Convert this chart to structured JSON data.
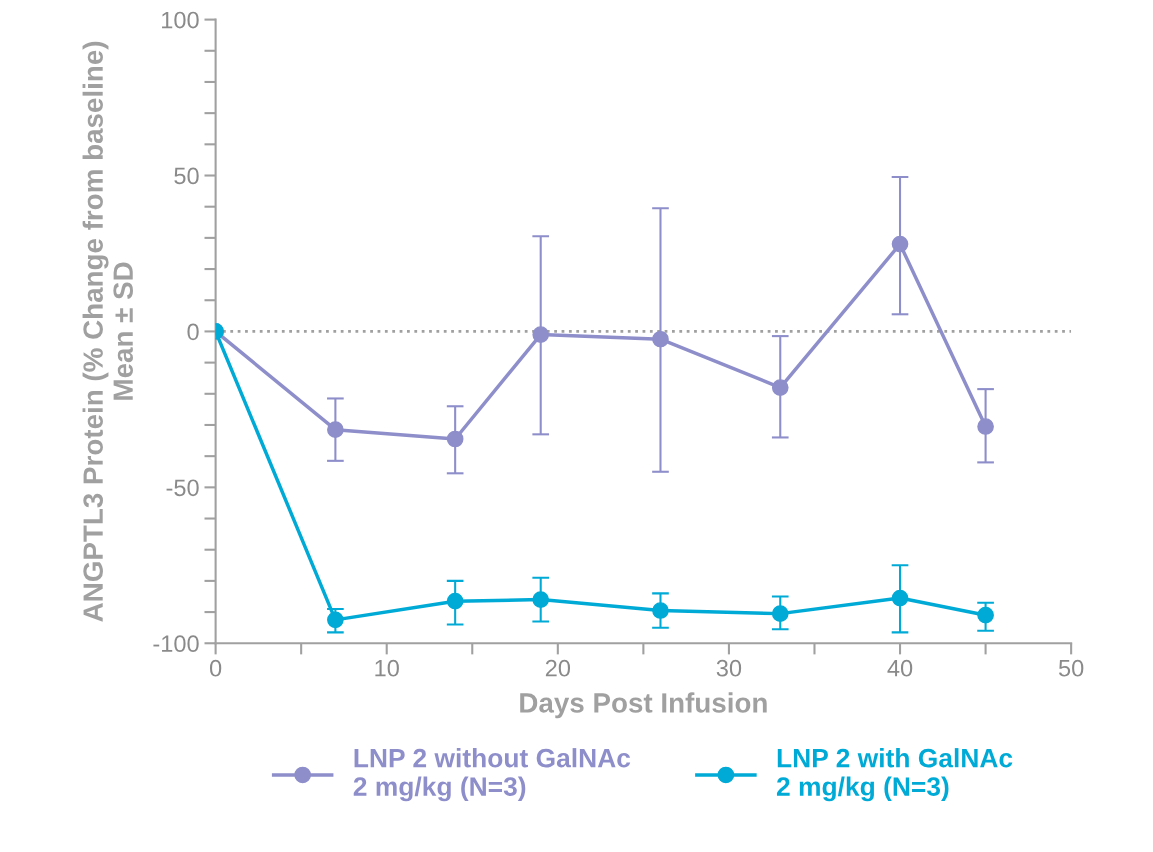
{
  "chart_data": {
    "type": "line",
    "xlabel": "Days Post Infusion",
    "ylabel": "ANGPTL3 Protein (% Change from baseline)\nMean ± SD",
    "xlim": [
      0,
      50
    ],
    "xticks": [
      0,
      {
        "value": 5,
        "label": null
      },
      10,
      {
        "value": 15,
        "label": null
      },
      20,
      {
        "value": 25,
        "label": null
      },
      30,
      {
        "value": 35,
        "label": null
      },
      40,
      {
        "value": 45,
        "label": null
      },
      50
    ],
    "ylim": [
      -100,
      100
    ],
    "yticks": [
      -100,
      {
        "value": -90,
        "label": null
      },
      {
        "value": -80,
        "label": null
      },
      {
        "value": -70,
        "label": null
      },
      {
        "value": -60,
        "label": null
      },
      -50,
      {
        "value": -40,
        "label": null
      },
      {
        "value": -30,
        "label": null
      },
      {
        "value": -20,
        "label": null
      },
      {
        "value": -10,
        "label": null
      },
      0,
      {
        "value": 10,
        "label": null
      },
      {
        "value": 20,
        "label": null
      },
      {
        "value": 30,
        "label": null
      },
      {
        "value": 40,
        "label": null
      },
      50,
      {
        "value": 60,
        "label": null
      },
      {
        "value": 70,
        "label": null
      },
      {
        "value": 80,
        "label": null
      },
      {
        "value": 90,
        "label": null
      },
      100
    ],
    "x": [
      0,
      7,
      14,
      19,
      26,
      33,
      40,
      45
    ],
    "series": [
      {
        "name": "LNP 2 without GalNAc\n2 mg/kg (N=3)",
        "color": "#8e8ecb",
        "values": [
          0,
          -31.5,
          -34.5,
          -1,
          -2.5,
          -18,
          28,
          -30.5
        ],
        "errors": [
          null,
          [
            -41.5,
            -21.5
          ],
          [
            -45.5,
            -24
          ],
          [
            -33,
            30.5
          ],
          [
            -45,
            39.5
          ],
          [
            -34,
            -1.5
          ],
          [
            5.5,
            49.5
          ],
          [
            -42,
            -18.5
          ]
        ]
      },
      {
        "name": "LNP 2 with GalNAc\n2 mg/kg (N=3)",
        "color": "#00aad6",
        "values": [
          0,
          -92.5,
          -86.5,
          -86,
          -89.5,
          -90.5,
          -85.5,
          -91
        ],
        "errors": [
          null,
          [
            -96.5,
            -89
          ],
          [
            -94,
            -80
          ],
          [
            -93,
            -79
          ],
          [
            -95,
            -84
          ],
          [
            -95.5,
            -85
          ],
          [
            -96.5,
            -75
          ],
          [
            -96,
            -87
          ]
        ]
      }
    ],
    "ref_lines": [
      {
        "axis": "y",
        "value": 0,
        "color": "#a0a0a0",
        "line_style": "dotted"
      }
    ],
    "marker": "circle",
    "line_style": "solid",
    "grid": false,
    "legend": "bottom"
  }
}
